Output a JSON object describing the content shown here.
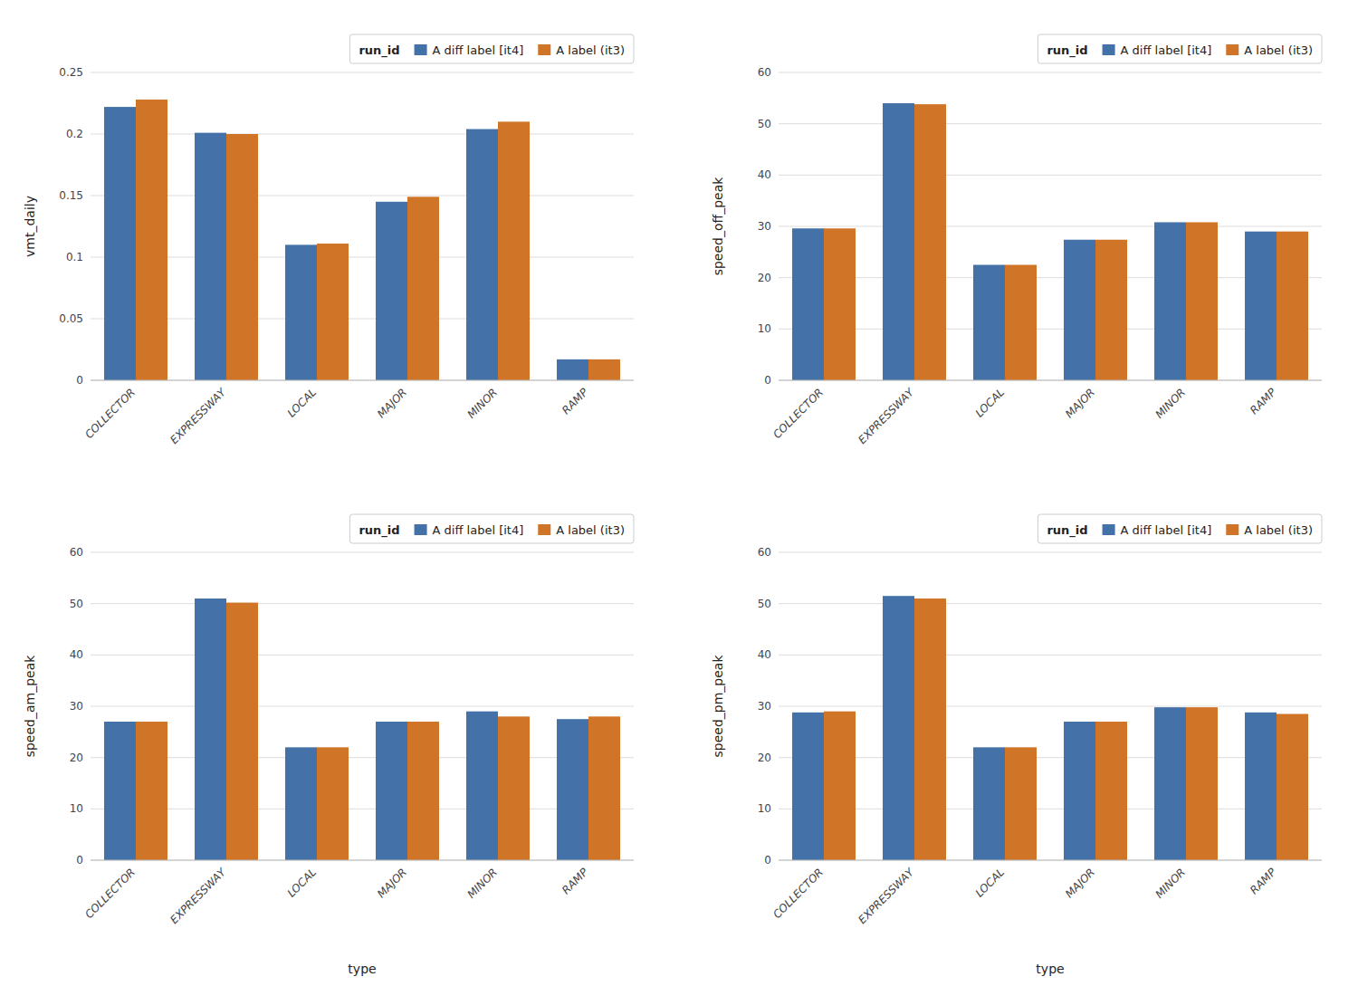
{
  "chart_data": [
    {
      "type": "bar",
      "categories": [
        "COLLECTOR",
        "EXPRESSWAY",
        "LOCAL",
        "MAJOR",
        "MINOR",
        "RAMP"
      ],
      "y_label": "vmt_daily",
      "legend_title": "run_id",
      "legend": "upper-right",
      "grid": true,
      "ylim": [
        0,
        0.25
      ],
      "yticks": [
        0,
        0.05,
        0.1,
        0.15,
        0.2,
        0.25
      ],
      "series": [
        {
          "name": "A diff label [it4]",
          "color": "#4472a8",
          "values": [
            0.222,
            0.201,
            0.11,
            0.145,
            0.204,
            0.017
          ]
        },
        {
          "name": "A label (it3)",
          "color": "#d07428",
          "values": [
            0.228,
            0.2,
            0.111,
            0.149,
            0.21,
            0.017
          ]
        }
      ]
    },
    {
      "type": "bar",
      "categories": [
        "COLLECTOR",
        "EXPRESSWAY",
        "LOCAL",
        "MAJOR",
        "MINOR",
        "RAMP"
      ],
      "y_label": "speed_off_peak",
      "legend_title": "run_id",
      "legend": "upper-right",
      "grid": true,
      "ylim": [
        0,
        60
      ],
      "yticks": [
        0,
        10,
        20,
        30,
        40,
        50,
        60
      ],
      "series": [
        {
          "name": "A diff label [it4]",
          "color": "#4472a8",
          "values": [
            29.6,
            54.0,
            22.5,
            27.4,
            30.8,
            29.0
          ]
        },
        {
          "name": "A label (it3)",
          "color": "#d07428",
          "values": [
            29.6,
            53.8,
            22.5,
            27.4,
            30.8,
            29.0
          ]
        }
      ]
    },
    {
      "type": "bar",
      "categories": [
        "COLLECTOR",
        "EXPRESSWAY",
        "LOCAL",
        "MAJOR",
        "MINOR",
        "RAMP"
      ],
      "y_label": "speed_am_peak",
      "x_label": "type",
      "legend_title": "run_id",
      "legend": "upper-right",
      "grid": true,
      "ylim": [
        0,
        60
      ],
      "yticks": [
        0,
        10,
        20,
        30,
        40,
        50,
        60
      ],
      "series": [
        {
          "name": "A diff label [it4]",
          "color": "#4472a8",
          "values": [
            27.0,
            51.0,
            22.0,
            27.0,
            29.0,
            27.5
          ]
        },
        {
          "name": "A label (it3)",
          "color": "#d07428",
          "values": [
            27.0,
            50.2,
            22.0,
            27.0,
            28.0,
            28.0
          ]
        }
      ]
    },
    {
      "type": "bar",
      "categories": [
        "COLLECTOR",
        "EXPRESSWAY",
        "LOCAL",
        "MAJOR",
        "MINOR",
        "RAMP"
      ],
      "y_label": "speed_pm_peak",
      "x_label": "type",
      "legend_title": "run_id",
      "legend": "upper-right",
      "grid": true,
      "ylim": [
        0,
        60
      ],
      "yticks": [
        0,
        10,
        20,
        30,
        40,
        50,
        60
      ],
      "series": [
        {
          "name": "A diff label [it4]",
          "color": "#4472a8",
          "values": [
            28.8,
            51.5,
            22.0,
            27.0,
            29.8,
            28.8
          ]
        },
        {
          "name": "A label (it3)",
          "color": "#d07428",
          "values": [
            29.0,
            51.0,
            22.0,
            27.0,
            29.8,
            28.5
          ]
        }
      ]
    }
  ]
}
